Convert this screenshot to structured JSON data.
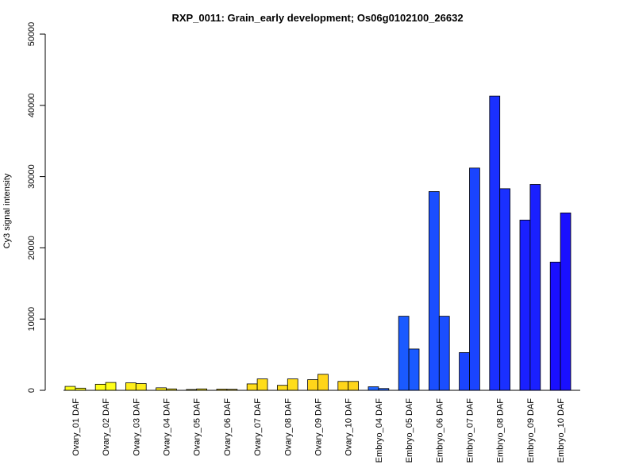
{
  "chart_data": {
    "type": "bar",
    "title": "RXP_0011: Grain_early development; Os06g0102100_26632",
    "xlabel": "",
    "ylabel": "Cy3 signal intensity",
    "ylim": [
      0,
      50000
    ],
    "yticks": [
      0,
      10000,
      20000,
      30000,
      40000,
      50000
    ],
    "grid": false,
    "categories": [
      "Ovary_01 DAF",
      "Ovary_02 DAF",
      "Ovary_03 DAF",
      "Ovary_04 DAF",
      "Ovary_05 DAF",
      "Ovary_06 DAF",
      "Ovary_07 DAF",
      "Ovary_08 DAF",
      "Ovary_09 DAF",
      "Ovary_10 DAF",
      "Embryo_04 DAF",
      "Embryo_05 DAF",
      "Embryo_06 DAF",
      "Embryo_07 DAF",
      "Embryo_08 DAF",
      "Embryo_09 DAF",
      "Embryo_10 DAF"
    ],
    "bar_colors": [
      "#ffff1a",
      "#ffff1a",
      "#ffee1a",
      "#ffee1a",
      "#ffee1a",
      "#ffdd1a",
      "#ffdd1a",
      "#ffdd1a",
      "#ffd51a",
      "#ffd51a",
      "#2266ff",
      "#1a5aff",
      "#1a4eff",
      "#1a44ff",
      "#1a30ff",
      "#1a20ff",
      "#1a10ff"
    ],
    "series": [
      {
        "values": [
          550,
          850,
          1050,
          350,
          120,
          170,
          900,
          700,
          1500,
          1250,
          500,
          10400,
          27900,
          5300,
          41300,
          23900,
          18000
        ]
      },
      {
        "values": [
          300,
          1100,
          950,
          200,
          200,
          150,
          1600,
          1600,
          2250,
          1250,
          250,
          5800,
          10400,
          31200,
          28300,
          28900,
          24900
        ]
      }
    ]
  }
}
